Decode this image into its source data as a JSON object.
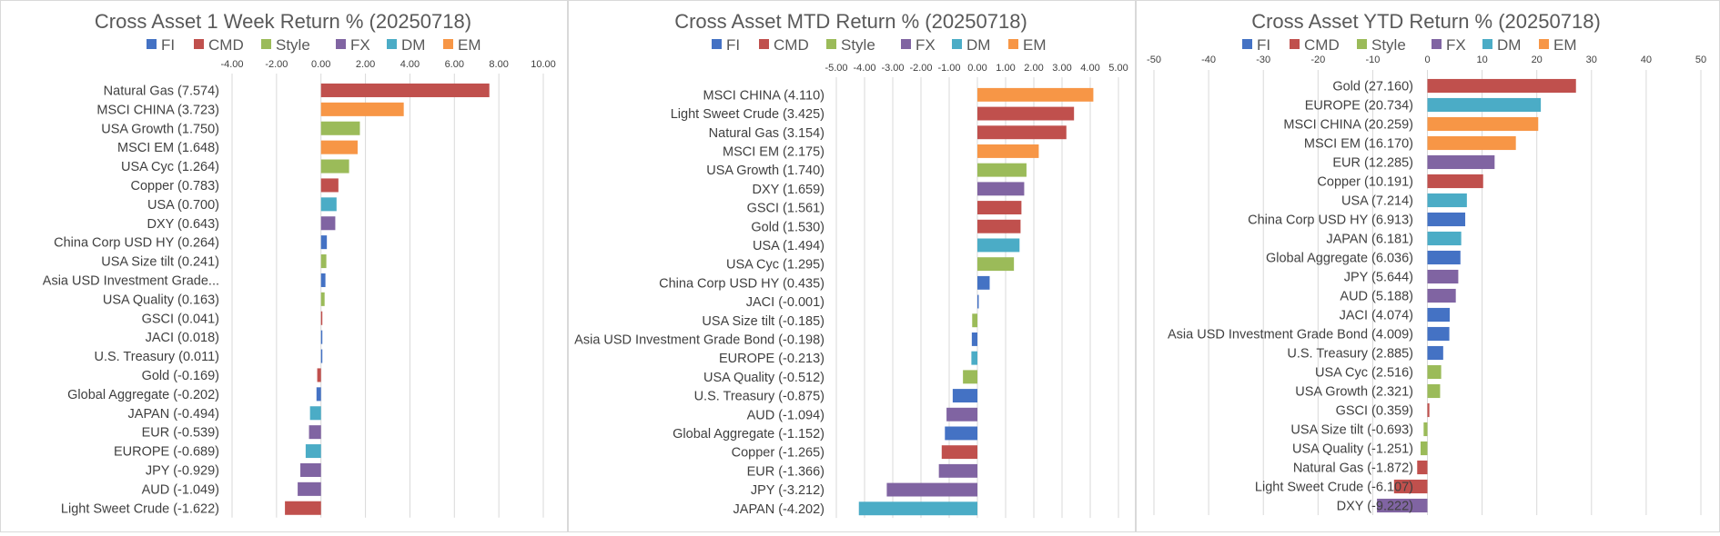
{
  "colors": {
    "FI": "#4472C4",
    "CMD": "#C0504D",
    "Style": "#9BBB59",
    "FX": "#8064A2",
    "DM": "#4BACC6",
    "EM": "#F79646"
  },
  "legend": [
    "FI",
    "CMD",
    "Style",
    "FX",
    "DM",
    "EM"
  ],
  "chart_data": [
    {
      "type": "bar",
      "orientation": "horizontal",
      "title": "Cross Asset 1 Week Return %  (20250718)",
      "xlim": [
        -4,
        10
      ],
      "ticks": [
        "-4.00",
        "-2.00",
        "0.00",
        "2.00",
        "4.00",
        "6.00",
        "8.00",
        "10.00"
      ],
      "tick_values": [
        -4,
        -2,
        0,
        2,
        4,
        6,
        8,
        10
      ],
      "legend_position": "top",
      "grid": true,
      "bars": [
        {
          "label": "Natural Gas (7.574)",
          "value": 7.574,
          "group": "CMD"
        },
        {
          "label": "MSCI CHINA (3.723)",
          "value": 3.723,
          "group": "EM"
        },
        {
          "label": "USA Growth (1.750)",
          "value": 1.75,
          "group": "Style"
        },
        {
          "label": "MSCI EM  (1.648)",
          "value": 1.648,
          "group": "EM"
        },
        {
          "label": "USA Cyc (1.264)",
          "value": 1.264,
          "group": "Style"
        },
        {
          "label": "Copper (0.783)",
          "value": 0.783,
          "group": "CMD"
        },
        {
          "label": "USA (0.700)",
          "value": 0.7,
          "group": "DM"
        },
        {
          "label": "DXY (0.643)",
          "value": 0.643,
          "group": "FX"
        },
        {
          "label": "China Corp USD HY (0.264)",
          "value": 0.264,
          "group": "FI"
        },
        {
          "label": "USA Size tilt (0.241)",
          "value": 0.241,
          "group": "Style"
        },
        {
          "label": "Asia USD Investment Grade...",
          "value": 0.2,
          "group": "FI"
        },
        {
          "label": "USA Quality (0.163)",
          "value": 0.163,
          "group": "Style"
        },
        {
          "label": "GSCI  (0.041)",
          "value": 0.041,
          "group": "CMD"
        },
        {
          "label": "JACI (0.018)",
          "value": 0.018,
          "group": "FI"
        },
        {
          "label": "U.S. Treasury (0.011)",
          "value": 0.011,
          "group": "FI"
        },
        {
          "label": "Gold (-0.169)",
          "value": -0.169,
          "group": "CMD"
        },
        {
          "label": "Global Aggregate (-0.202)",
          "value": -0.202,
          "group": "FI"
        },
        {
          "label": "JAPAN (-0.494)",
          "value": -0.494,
          "group": "DM"
        },
        {
          "label": "EUR (-0.539)",
          "value": -0.539,
          "group": "FX"
        },
        {
          "label": "EUROPE (-0.689)",
          "value": -0.689,
          "group": "DM"
        },
        {
          "label": "JPY (-0.929)",
          "value": -0.929,
          "group": "FX"
        },
        {
          "label": "AUD (-1.049)",
          "value": -1.049,
          "group": "FX"
        },
        {
          "label": "Light Sweet Crude (-1.622)",
          "value": -1.622,
          "group": "CMD"
        }
      ]
    },
    {
      "type": "bar",
      "orientation": "horizontal",
      "title": "Cross Asset MTD Return %  (20250718)",
      "xlim": [
        -5,
        5
      ],
      "ticks": [
        "-5.00",
        "-4.00",
        "-3.00",
        "-2.00",
        "-1.00",
        "0.00",
        "1.00",
        "2.00",
        "3.00",
        "4.00",
        "5.00"
      ],
      "tick_values": [
        -5,
        -4,
        -3,
        -2,
        -1,
        0,
        1,
        2,
        3,
        4,
        5
      ],
      "legend_position": "top",
      "grid": true,
      "bars": [
        {
          "label": "MSCI CHINA (4.110)",
          "value": 4.11,
          "group": "EM"
        },
        {
          "label": "Light Sweet Crude (3.425)",
          "value": 3.425,
          "group": "CMD"
        },
        {
          "label": "Natural Gas (3.154)",
          "value": 3.154,
          "group": "CMD"
        },
        {
          "label": "MSCI EM  (2.175)",
          "value": 2.175,
          "group": "EM"
        },
        {
          "label": "USA Growth (1.740)",
          "value": 1.74,
          "group": "Style"
        },
        {
          "label": "DXY (1.659)",
          "value": 1.659,
          "group": "FX"
        },
        {
          "label": "GSCI  (1.561)",
          "value": 1.561,
          "group": "CMD"
        },
        {
          "label": "Gold (1.530)",
          "value": 1.53,
          "group": "CMD"
        },
        {
          "label": "USA (1.494)",
          "value": 1.494,
          "group": "DM"
        },
        {
          "label": "USA Cyc (1.295)",
          "value": 1.295,
          "group": "Style"
        },
        {
          "label": "China Corp USD HY (0.435)",
          "value": 0.435,
          "group": "FI"
        },
        {
          "label": "JACI (-0.001)",
          "value": -0.001,
          "group": "FI"
        },
        {
          "label": "USA Size tilt (-0.185)",
          "value": -0.185,
          "group": "Style"
        },
        {
          "label": "Asia USD Investment Grade Bond (-0.198)",
          "value": -0.198,
          "group": "FI"
        },
        {
          "label": "EUROPE (-0.213)",
          "value": -0.213,
          "group": "DM"
        },
        {
          "label": "USA Quality (-0.512)",
          "value": -0.512,
          "group": "Style"
        },
        {
          "label": "U.S. Treasury (-0.875)",
          "value": -0.875,
          "group": "FI"
        },
        {
          "label": "AUD (-1.094)",
          "value": -1.094,
          "group": "FX"
        },
        {
          "label": "Global Aggregate (-1.152)",
          "value": -1.152,
          "group": "FI"
        },
        {
          "label": "Copper (-1.265)",
          "value": -1.265,
          "group": "CMD"
        },
        {
          "label": "EUR (-1.366)",
          "value": -1.366,
          "group": "FX"
        },
        {
          "label": "JPY (-3.212)",
          "value": -3.212,
          "group": "FX"
        },
        {
          "label": "JAPAN (-4.202)",
          "value": -4.202,
          "group": "DM"
        }
      ]
    },
    {
      "type": "bar",
      "orientation": "horizontal",
      "title": "Cross Asset YTD Return %  (20250718)",
      "xlim": [
        -50,
        50
      ],
      "ticks": [
        "-50",
        "-40",
        "-30",
        "-20",
        "-10",
        "0",
        "10",
        "20",
        "30",
        "40",
        "50"
      ],
      "tick_values": [
        -50,
        -40,
        -30,
        -20,
        -10,
        0,
        10,
        20,
        30,
        40,
        50
      ],
      "legend_position": "top",
      "grid": true,
      "bars": [
        {
          "label": "Gold (27.160)",
          "value": 27.16,
          "group": "CMD"
        },
        {
          "label": "EUROPE (20.734)",
          "value": 20.734,
          "group": "DM"
        },
        {
          "label": "MSCI CHINA (20.259)",
          "value": 20.259,
          "group": "EM"
        },
        {
          "label": "MSCI EM  (16.170)",
          "value": 16.17,
          "group": "EM"
        },
        {
          "label": "EUR (12.285)",
          "value": 12.285,
          "group": "FX"
        },
        {
          "label": "Copper (10.191)",
          "value": 10.191,
          "group": "CMD"
        },
        {
          "label": "USA (7.214)",
          "value": 7.214,
          "group": "DM"
        },
        {
          "label": "China Corp USD HY (6.913)",
          "value": 6.913,
          "group": "FI"
        },
        {
          "label": "JAPAN (6.181)",
          "value": 6.181,
          "group": "DM"
        },
        {
          "label": "Global Aggregate (6.036)",
          "value": 6.036,
          "group": "FI"
        },
        {
          "label": "JPY (5.644)",
          "value": 5.644,
          "group": "FX"
        },
        {
          "label": "AUD (5.188)",
          "value": 5.188,
          "group": "FX"
        },
        {
          "label": "JACI (4.074)",
          "value": 4.074,
          "group": "FI"
        },
        {
          "label": "Asia USD Investment Grade Bond (4.009)",
          "value": 4.009,
          "group": "FI"
        },
        {
          "label": "U.S. Treasury (2.885)",
          "value": 2.885,
          "group": "FI"
        },
        {
          "label": "USA Cyc (2.516)",
          "value": 2.516,
          "group": "Style"
        },
        {
          "label": "USA Growth (2.321)",
          "value": 2.321,
          "group": "Style"
        },
        {
          "label": "GSCI  (0.359)",
          "value": 0.359,
          "group": "CMD"
        },
        {
          "label": "USA Size tilt (-0.693)",
          "value": -0.693,
          "group": "Style"
        },
        {
          "label": "USA Quality (-1.251)",
          "value": -1.251,
          "group": "Style"
        },
        {
          "label": "Natural Gas (-1.872)",
          "value": -1.872,
          "group": "CMD"
        },
        {
          "label": "Light Sweet Crude (-6.107)",
          "value": -6.107,
          "group": "CMD"
        },
        {
          "label": "DXY (-9.222)",
          "value": -9.222,
          "group": "FX"
        }
      ]
    }
  ]
}
